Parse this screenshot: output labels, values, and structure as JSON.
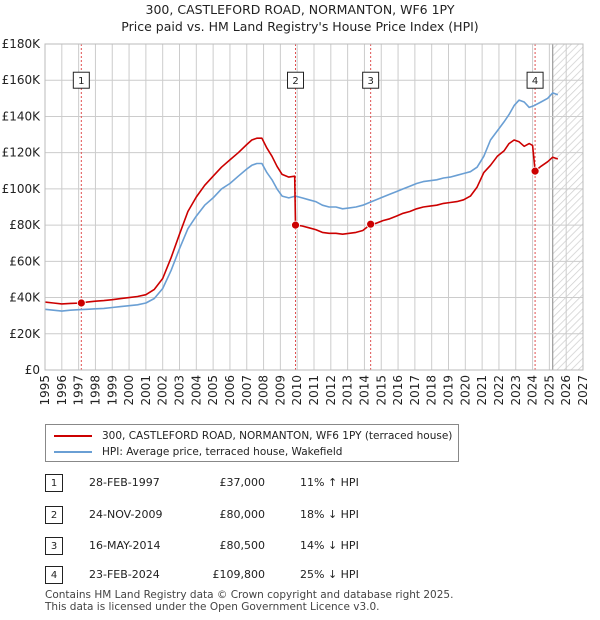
{
  "title_line1": "300, CASTLEFORD ROAD, NORMANTON, WF6 1PY",
  "title_line2": "Price paid vs. HM Land Registry's House Price Index (HPI)",
  "legend": {
    "property_label": "300, CASTLEFORD ROAD, NORMANTON, WF6 1PY (terraced house)",
    "hpi_label": "HPI: Average price, terraced house, Wakefield"
  },
  "colors": {
    "property": "#cc0000",
    "hpi": "#6a9fd4",
    "grid": "#cccccc",
    "background": "#ffffff"
  },
  "transactions": [
    {
      "num": "1",
      "date": "28-FEB-1997",
      "price": "£37,000",
      "hpi_diff": "11% ↑ HPI"
    },
    {
      "num": "2",
      "date": "24-NOV-2009",
      "price": "£80,000",
      "hpi_diff": "18% ↓ HPI"
    },
    {
      "num": "3",
      "date": "16-MAY-2014",
      "price": "£80,500",
      "hpi_diff": "14% ↓ HPI"
    },
    {
      "num": "4",
      "date": "23-FEB-2024",
      "price": "£109,800",
      "hpi_diff": "25% ↓ HPI"
    }
  ],
  "footer": {
    "line1": "Contains HM Land Registry data © Crown copyright and database right 2025.",
    "line2": "This data is licensed under the Open Government Licence v3.0."
  },
  "chart_data": {
    "type": "line",
    "title": "300, CASTLEFORD ROAD, NORMANTON, WF6 1PY",
    "subtitle": "Price paid vs. HM Land Registry's House Price Index (HPI)",
    "xlabel": "",
    "ylabel": "",
    "xlim": [
      1995,
      2027
    ],
    "ylim": [
      0,
      180000
    ],
    "grid": true,
    "legend_position": "bottom",
    "x_ticks": [
      "1995",
      "1996",
      "1997",
      "1998",
      "1999",
      "2000",
      "2001",
      "2002",
      "2003",
      "2004",
      "2005",
      "2006",
      "2007",
      "2008",
      "2009",
      "2010",
      "2011",
      "2012",
      "2013",
      "2014",
      "2015",
      "2016",
      "2017",
      "2018",
      "2019",
      "2020",
      "2021",
      "2022",
      "2023",
      "2024",
      "2025",
      "2026",
      "2027"
    ],
    "y_ticks": [
      {
        "value": 0,
        "label": "£0"
      },
      {
        "value": 20000,
        "label": "£20K"
      },
      {
        "value": 40000,
        "label": "£40K"
      },
      {
        "value": 60000,
        "label": "£60K"
      },
      {
        "value": 80000,
        "label": "£80K"
      },
      {
        "value": 100000,
        "label": "£100K"
      },
      {
        "value": 120000,
        "label": "£120K"
      },
      {
        "value": 140000,
        "label": "£140K"
      },
      {
        "value": 160000,
        "label": "£160K"
      },
      {
        "value": 180000,
        "label": "£180K"
      }
    ],
    "forecast_start": 2025.2,
    "series": [
      {
        "name": "HPI: Average price, terraced house, Wakefield",
        "color": "#6a9fd4",
        "x": [
          1995.0,
          1995.5,
          1996.0,
          1996.5,
          1997.0,
          1997.5,
          1998.0,
          1998.5,
          1999.0,
          1999.5,
          2000.0,
          2000.5,
          2001.0,
          2001.5,
          2002.0,
          2002.5,
          2003.0,
          2003.5,
          2004.0,
          2004.5,
          2005.0,
          2005.5,
          2006.0,
          2006.5,
          2007.0,
          2007.3,
          2007.6,
          2007.9,
          2008.2,
          2008.5,
          2008.8,
          2009.1,
          2009.5,
          2009.9,
          2010.3,
          2010.7,
          2011.1,
          2011.5,
          2011.9,
          2012.3,
          2012.7,
          2013.1,
          2013.5,
          2013.9,
          2014.3,
          2014.7,
          2015.1,
          2015.5,
          2015.9,
          2016.3,
          2016.7,
          2017.1,
          2017.5,
          2017.9,
          2018.3,
          2018.7,
          2019.1,
          2019.5,
          2019.9,
          2020.3,
          2020.7,
          2021.1,
          2021.5,
          2021.9,
          2022.3,
          2022.6,
          2022.9,
          2023.2,
          2023.5,
          2023.8,
          2024.1,
          2024.5,
          2024.9,
          2025.2,
          2025.5
        ],
        "values": [
          33500,
          33000,
          32500,
          33000,
          33300,
          33500,
          33800,
          34000,
          34500,
          35000,
          35500,
          36000,
          37000,
          39500,
          45000,
          55000,
          67000,
          78000,
          85000,
          91000,
          95000,
          100000,
          103000,
          107000,
          111000,
          113000,
          114000,
          114000,
          109000,
          105000,
          100000,
          96000,
          95000,
          96000,
          95000,
          94000,
          93000,
          91000,
          90000,
          90000,
          89000,
          89500,
          90000,
          91000,
          92500,
          94000,
          95500,
          97000,
          98500,
          100000,
          101500,
          103000,
          104000,
          104500,
          105000,
          106000,
          106500,
          107500,
          108500,
          109500,
          112000,
          118000,
          127000,
          132000,
          137000,
          141000,
          146000,
          149000,
          148000,
          145000,
          146000,
          148000,
          150000,
          153000,
          152000
        ]
      },
      {
        "name": "300, CASTLEFORD ROAD, NORMANTON, WF6 1PY (terraced house)",
        "color": "#cc0000",
        "x": [
          1995.0,
          1995.5,
          1996.0,
          1996.5,
          1997.16,
          1997.5,
          1998.0,
          1998.5,
          1999.0,
          1999.5,
          2000.0,
          2000.5,
          2001.0,
          2001.5,
          2002.0,
          2002.5,
          2003.0,
          2003.5,
          2004.0,
          2004.5,
          2005.0,
          2005.5,
          2006.0,
          2006.5,
          2007.0,
          2007.3,
          2007.6,
          2007.9,
          2008.2,
          2008.5,
          2008.8,
          2009.1,
          2009.5,
          2009.85,
          2009.9,
          2010.3,
          2010.7,
          2011.1,
          2011.5,
          2011.9,
          2012.3,
          2012.7,
          2013.1,
          2013.5,
          2013.9,
          2014.37,
          2014.7,
          2015.1,
          2015.5,
          2015.9,
          2016.3,
          2016.7,
          2017.1,
          2017.5,
          2017.9,
          2018.3,
          2018.7,
          2019.1,
          2019.5,
          2019.9,
          2020.3,
          2020.7,
          2021.1,
          2021.5,
          2021.9,
          2022.3,
          2022.6,
          2022.9,
          2023.2,
          2023.5,
          2023.8,
          2024.0,
          2024.15,
          2024.5,
          2024.9,
          2025.2,
          2025.5
        ],
        "values": [
          37500,
          37000,
          36500,
          36800,
          37000,
          37500,
          38000,
          38300,
          38800,
          39400,
          40000,
          40600,
          41600,
          44500,
          50500,
          62000,
          75000,
          87500,
          95500,
          102000,
          107000,
          112000,
          116000,
          120000,
          124500,
          127000,
          128000,
          128000,
          122500,
          118000,
          112500,
          108000,
          106500,
          107000,
          80000,
          79500,
          78500,
          77500,
          76000,
          75500,
          75500,
          75000,
          75500,
          76000,
          77000,
          80500,
          81000,
          82500,
          83500,
          85000,
          86500,
          87500,
          89000,
          90000,
          90500,
          91000,
          92000,
          92500,
          93000,
          94000,
          96000,
          101000,
          109000,
          113000,
          118000,
          121000,
          125000,
          127000,
          126000,
          123500,
          125000,
          124000,
          109800,
          112500,
          115000,
          117500,
          116500
        ]
      }
    ],
    "sale_markers": [
      {
        "num": "1",
        "x": 1997.16,
        "value": 37000
      },
      {
        "num": "2",
        "x": 2009.9,
        "value": 80000
      },
      {
        "num": "3",
        "x": 2014.37,
        "value": 80500
      },
      {
        "num": "4",
        "x": 2024.15,
        "value": 109800
      }
    ]
  }
}
